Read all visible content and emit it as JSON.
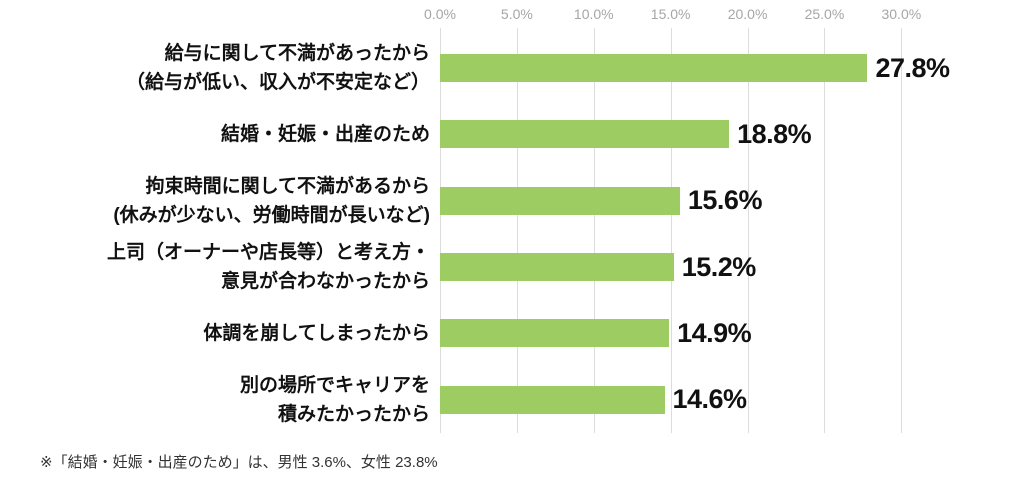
{
  "chart_data": {
    "type": "bar",
    "orientation": "horizontal",
    "title": "",
    "xlabel": "",
    "ylabel": "",
    "xlim": [
      0,
      30
    ],
    "grid": true,
    "legend": false,
    "x_ticks": [
      "0.0%",
      "5.0%",
      "10.0%",
      "15.0%",
      "20.0%",
      "25.0%",
      "30.0%"
    ],
    "categories": [
      [
        "給与に関して不満があったから",
        "（給与が低い、収入が不安定など）"
      ],
      [
        "結婚・妊娠・出産のため"
      ],
      [
        "拘束時間に関して不満があるから",
        "(休みが少ない、労働時間が長いなど)"
      ],
      [
        "上司（オーナーや店長等）と考え方・",
        "意見が合わなかったから"
      ],
      [
        "体調を崩してしまったから"
      ],
      [
        "別の場所でキャリアを",
        "積みたかったから"
      ]
    ],
    "values": [
      27.8,
      18.8,
      15.6,
      15.2,
      14.9,
      14.6
    ],
    "value_labels": [
      "27.8%",
      "18.8%",
      "15.6%",
      "15.2%",
      "14.9%",
      "14.6%"
    ],
    "colors": {
      "bar": "#9dcc63",
      "gridline": "#dcdcdc",
      "tick_text": "#a6a6a6",
      "label_text": "#111111",
      "footnote_text": "#333333"
    },
    "footnote": "※「結婚・妊娠・出産のため」は、男性 3.6%、女性 23.8%"
  }
}
